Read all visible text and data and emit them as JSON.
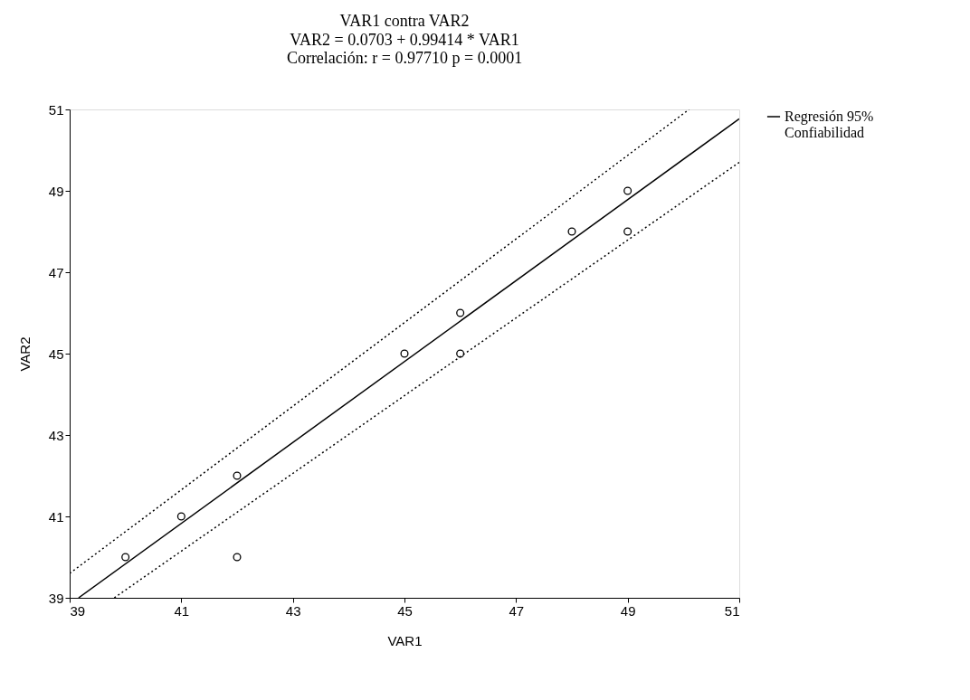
{
  "chart_data": {
    "type": "scatter",
    "title": "VAR1 contra VAR2",
    "subtitle": "VAR2 = 0.0703 + 0.99414 * VAR1\nCorrelación: r = 0.97710   p = 0.0001",
    "xlabel": "VAR1",
    "ylabel": "VAR2",
    "xlim": [
      39,
      51
    ],
    "ylim": [
      39,
      51
    ],
    "xticks": [
      39,
      41,
      43,
      45,
      47,
      49,
      51
    ],
    "yticks": [
      39,
      41,
      43,
      45,
      47,
      49,
      51
    ],
    "grid": false,
    "legend": "right",
    "series": [
      {
        "name": "Regresión 95%\nConfiabilidad",
        "marker": "circle",
        "color": "#000000",
        "x": [
          40,
          41,
          42,
          42,
          45,
          46,
          46,
          48,
          49,
          49
        ],
        "values": [
          40,
          41,
          42,
          40,
          45,
          46,
          45,
          48,
          49,
          48
        ]
      },
      {
        "type": "line",
        "marker": "none",
        "color": "#000000",
        "line_style": "solid",
        "x": [
          39.16,
          51
        ],
        "values": [
          39,
          50.77
        ]
      },
      {
        "type": "line",
        "marker": "none",
        "color": "#000000",
        "line_style": "dotted",
        "x": [
          39,
          50.1
        ],
        "values": [
          39.6,
          51
        ]
      },
      {
        "type": "line",
        "marker": "none",
        "color": "#000000",
        "line_style": "dotted",
        "x": [
          39.8,
          51
        ],
        "values": [
          39,
          49.7
        ]
      }
    ]
  }
}
